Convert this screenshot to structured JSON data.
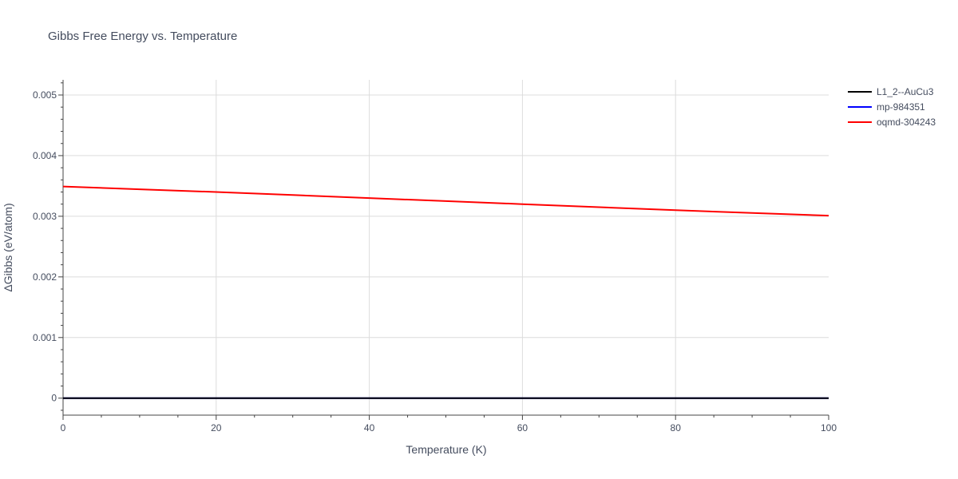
{
  "chart_data": {
    "type": "line",
    "title": "Gibbs Free Energy vs. Temperature",
    "xlabel": "Temperature (K)",
    "ylabel": "ΔGibbs (eV/atom)",
    "xlim": [
      0,
      100
    ],
    "ylim": [
      -0.00028,
      0.00525
    ],
    "x_ticks": [
      0,
      20,
      40,
      60,
      80,
      100
    ],
    "x_tick_labels": [
      "0",
      "20",
      "40",
      "60",
      "80",
      "100"
    ],
    "y_ticks": [
      0,
      0.001,
      0.002,
      0.003,
      0.004,
      0.005
    ],
    "y_tick_labels": [
      "0",
      "0.001",
      "0.002",
      "0.003",
      "0.004",
      "0.005"
    ],
    "grid": true,
    "legend_position": "top-right outside",
    "series": [
      {
        "name": "L1_2--AuCu3",
        "color": "#000000",
        "x": [
          0,
          10,
          20,
          30,
          40,
          50,
          60,
          70,
          80,
          90,
          100
        ],
        "y": [
          0,
          0,
          0,
          0,
          0,
          0,
          0,
          0,
          0,
          0,
          0
        ]
      },
      {
        "name": "mp-984351",
        "color": "#0000ff",
        "x": [
          0,
          10,
          20,
          30,
          40,
          50,
          60,
          70,
          80,
          90,
          100
        ],
        "y": [
          0,
          0,
          0,
          0,
          0,
          0,
          0,
          0,
          0,
          0,
          0
        ]
      },
      {
        "name": "oqmd-304243",
        "color": "#ff0000",
        "x": [
          0,
          10,
          20,
          30,
          40,
          50,
          60,
          70,
          80,
          90,
          100
        ],
        "y": [
          0.00349,
          0.003445,
          0.0034,
          0.00335,
          0.0033,
          0.00325,
          0.0032,
          0.00315,
          0.0031,
          0.003055,
          0.00301
        ]
      }
    ]
  }
}
